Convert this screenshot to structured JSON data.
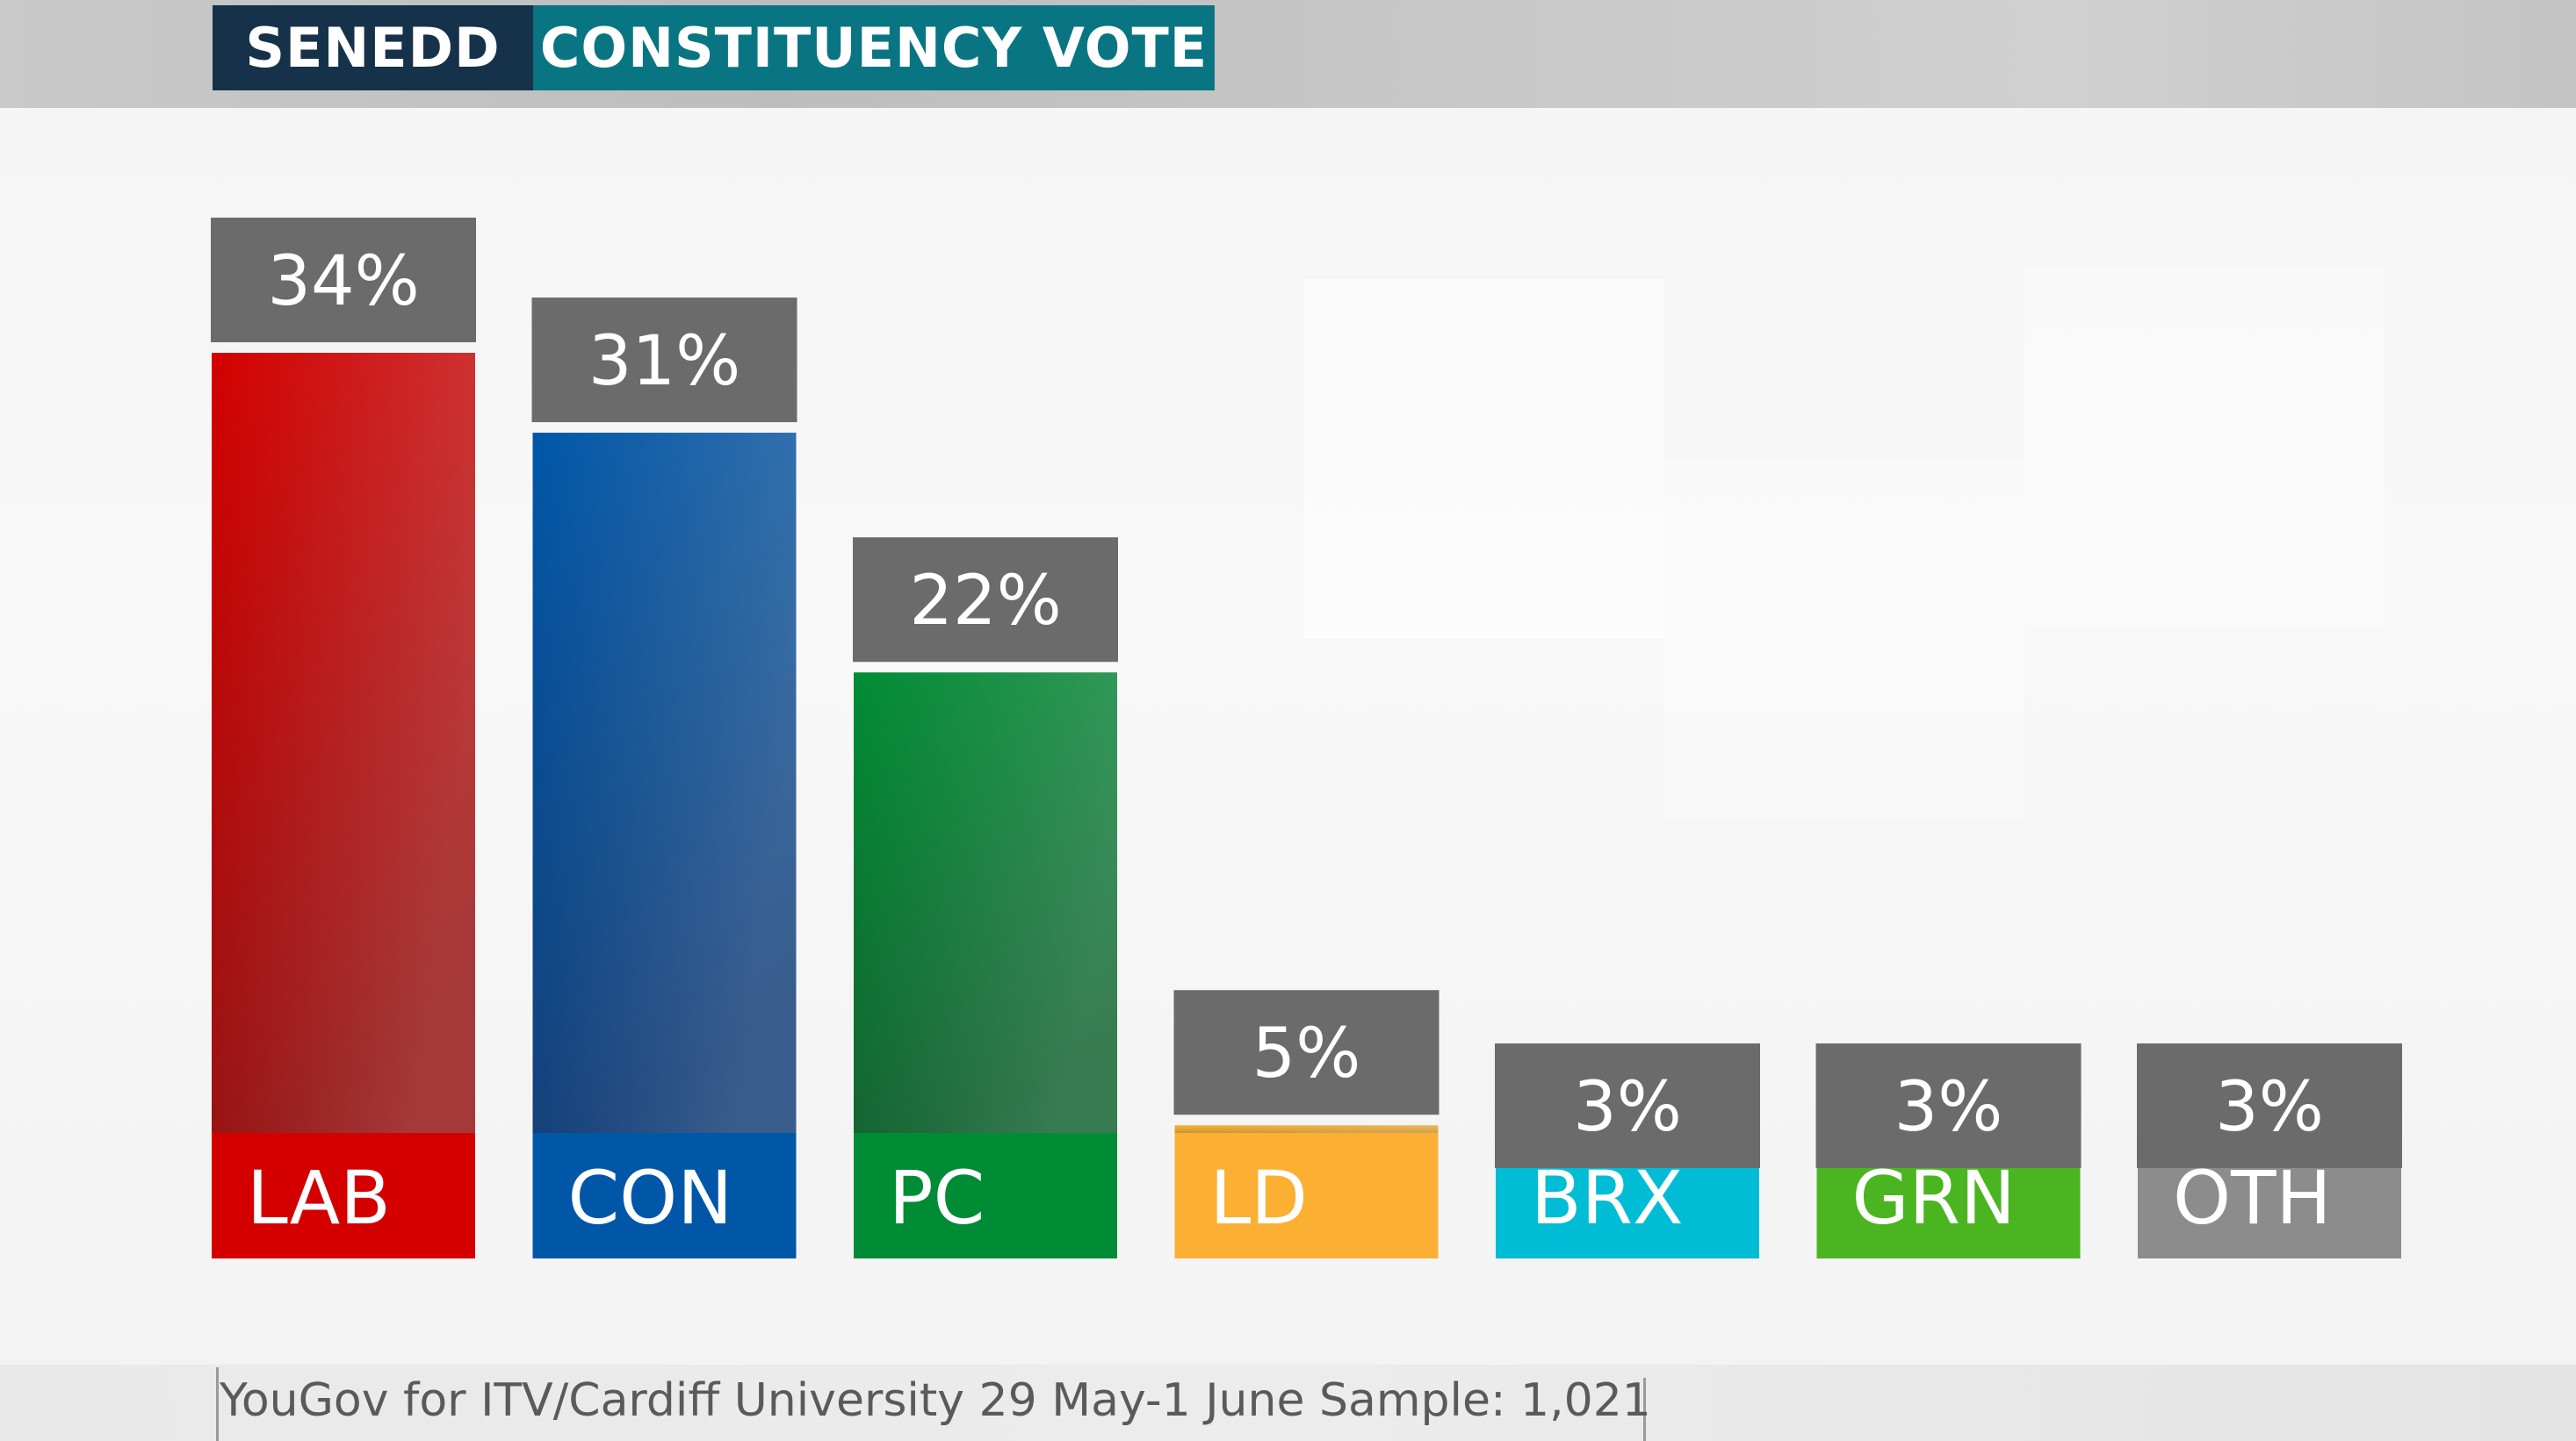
{
  "header": {
    "left_label": "SENEDD",
    "right_label": "CONSTITUENCY VOTE",
    "left_color": "#16324a",
    "right_color": "#0a7582"
  },
  "footer": {
    "source": "YouGov for ITV/Cardiff University 29 May-1 June Sample: 1,021"
  },
  "chart_data": {
    "type": "bar",
    "categories": [
      "LAB",
      "CON",
      "PC",
      "LD",
      "BRX",
      "GRN",
      "OTH"
    ],
    "values": [
      34,
      31,
      22,
      5,
      3,
      3,
      3
    ],
    "value_labels": [
      "34%",
      "31%",
      "22%",
      "5%",
      "3%",
      "3%",
      "3%"
    ],
    "colors": [
      "#d40000",
      "#0057a8",
      "#008c35",
      "#fbb034",
      "#00bcd4",
      "#4ab520",
      "#8c8c8c"
    ],
    "dark_colors": [
      "#8c0000",
      "#002f6c",
      "#00561f",
      "#c88a1c",
      "#0a90a3",
      "#2f8a0f",
      "#6e6e6e"
    ],
    "label_box_color": "#6b6b6b",
    "title": "",
    "xlabel": "",
    "ylabel": "",
    "ylim": [
      0,
      34
    ]
  }
}
